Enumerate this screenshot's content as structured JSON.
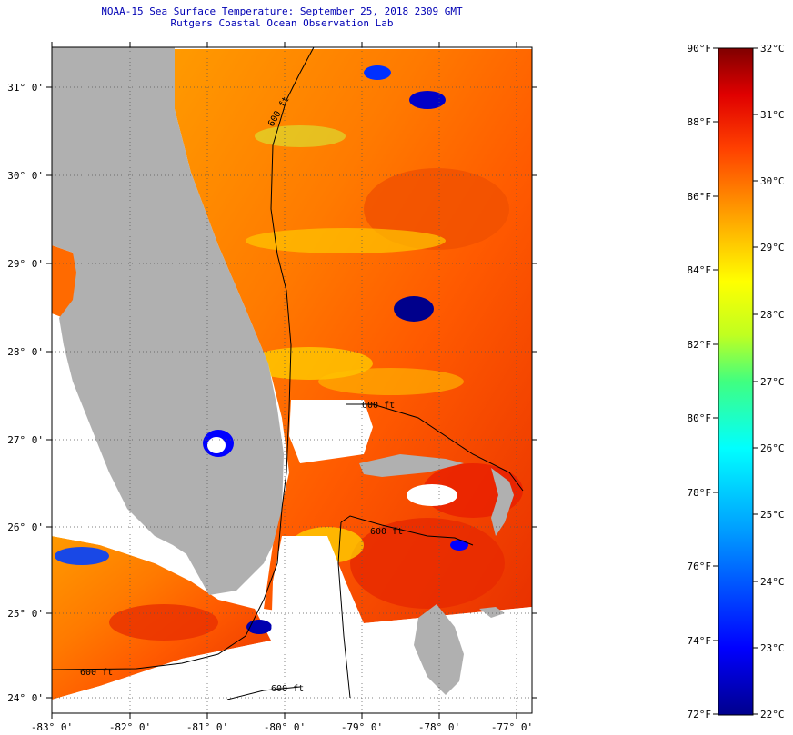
{
  "title": "NOAA-15 Sea Surface Temperature:  September 25, 2018 2309 GMT",
  "subtitle": "Rutgers Coastal Ocean Observation Lab",
  "map": {
    "lat_labels": [
      "31° 0'",
      "30° 0'",
      "29° 0'",
      "28° 0'",
      "27° 0'",
      "26° 0'",
      "25° 0'",
      "24° 0'"
    ],
    "lon_labels": [
      "-83° 0'",
      "-82° 0'",
      "-81° 0'",
      "-80° 0'",
      "-79° 0'",
      "-78° 0'",
      "-77° 0'"
    ],
    "contour_labels": [
      "600 ft",
      "600 ft",
      "600 ft",
      "600 ft",
      "600 ft"
    ],
    "land_color": "#b0b0b0",
    "no_data_color": "#ffffff"
  },
  "colorbar": {
    "fahrenheit_labels": [
      "90°F",
      "88°F",
      "86°F",
      "84°F",
      "82°F",
      "80°F",
      "78°F",
      "76°F",
      "74°F",
      "72°F"
    ],
    "celsius_labels": [
      "32°C",
      "31°C",
      "30°C",
      "29°C",
      "28°C",
      "27°C",
      "26°C",
      "25°C",
      "24°C",
      "23°C",
      "22°C"
    ],
    "range_f": [
      72,
      90
    ],
    "range_c": [
      22,
      32
    ],
    "colors": [
      "#00008c",
      "#0000ff",
      "#00a0ff",
      "#00ffff",
      "#40ff80",
      "#c0ff20",
      "#ffff00",
      "#ffa000",
      "#ff4000",
      "#e00000",
      "#800000"
    ]
  }
}
